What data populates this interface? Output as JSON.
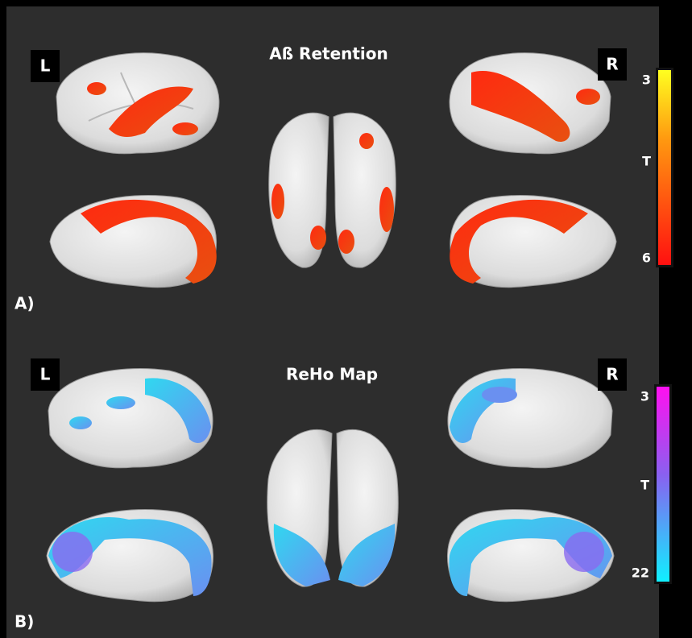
{
  "panels": [
    {
      "label": "A)",
      "title": "Aß Retention",
      "left": "L",
      "right": "R",
      "colorbar": {
        "top": "3",
        "middle": "T",
        "bottom": "6"
      }
    },
    {
      "label": "B)",
      "title": "ReHo Map",
      "left": "L",
      "right": "R",
      "colorbar": {
        "top": "3",
        "middle": "T",
        "bottom": "22"
      }
    }
  ]
}
